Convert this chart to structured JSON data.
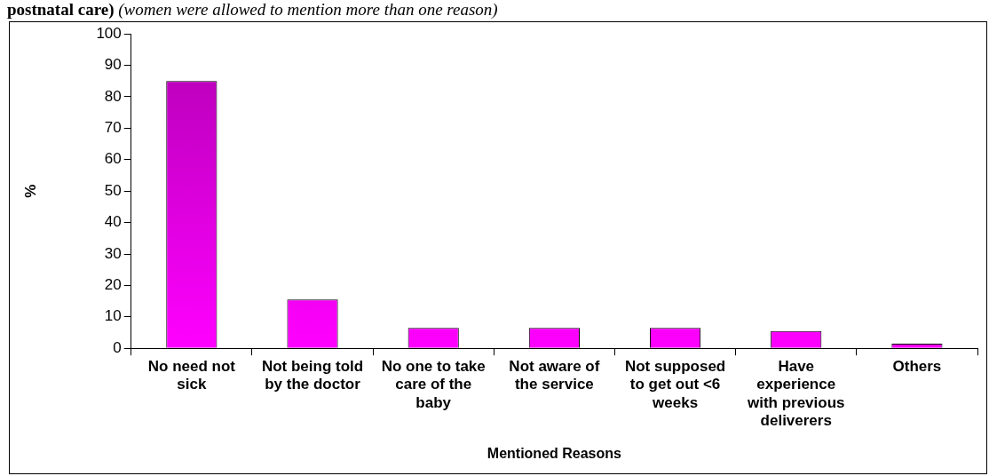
{
  "chart_data": {
    "type": "bar",
    "title": "postnatal care)",
    "subtitle": "(women were allowed to mention more than one reason)",
    "categories": [
      "No need not sick",
      "Not being told by the doctor",
      "No one to take care of the baby",
      "Not aware of the service",
      "Not supposed to get out <6 weeks",
      "Have experience with previous deliverers",
      "Others"
    ],
    "values": [
      85,
      15.5,
      6.5,
      6.5,
      6.5,
      5.5,
      1.5
    ],
    "color": "#ff00ff",
    "ylim": [
      0,
      100
    ],
    "yticks": [
      0,
      10,
      20,
      30,
      40,
      50,
      60,
      70,
      80,
      90,
      100
    ],
    "ylabel": "%",
    "xlabel": "Mentioned Reasons",
    "grid": false,
    "legend": false
  }
}
